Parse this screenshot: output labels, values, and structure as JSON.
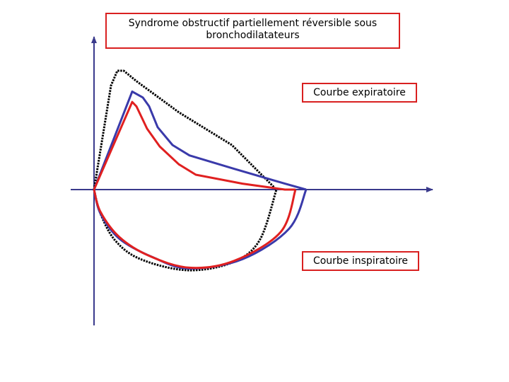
{
  "chart_data": {
    "type": "line",
    "title": "Syndrome obstructif partiellement réversible sous bronchodilatateurs",
    "annotations": [
      {
        "text": "Courbe expiratoire"
      },
      {
        "text": "Courbe inspiratoire"
      }
    ],
    "xlim": [
      0,
      100
    ],
    "ylim": [
      -100,
      100
    ],
    "grid": false,
    "series": [
      {
        "color": "#000000",
        "style": "dotted",
        "expiratory": {
          "x": [
            0,
            8,
            11,
            14,
            20,
            40,
            65,
            86
          ],
          "y": [
            0,
            70,
            80,
            80,
            73,
            52,
            30,
            0
          ]
        },
        "inspiratory": {
          "x": [
            0,
            3,
            10,
            22,
            44,
            65,
            78,
            86
          ],
          "y": [
            0,
            -28,
            -60,
            -82,
            -95,
            -86,
            -60,
            0
          ]
        }
      },
      {
        "color": "#3a3aaa",
        "style": "solid",
        "expiratory": {
          "x": [
            0,
            18,
            23,
            26,
            30,
            37,
            45,
            66,
            90,
            100
          ],
          "y": [
            0,
            66,
            62,
            56,
            42,
            30,
            23,
            14,
            4,
            0
          ]
        },
        "inspiratory": {
          "x": [
            0,
            3,
            12,
            28,
            45,
            70,
            92,
            100
          ],
          "y": [
            0,
            -28,
            -58,
            -80,
            -93,
            -82,
            -46,
            0
          ]
        }
      },
      {
        "color": "#e02020",
        "style": "solid",
        "expiratory": {
          "x": [
            0,
            18,
            20,
            25,
            31,
            40,
            48,
            70,
            90,
            95
          ],
          "y": [
            0,
            59,
            56,
            41,
            29,
            17,
            10,
            4,
            0,
            0
          ]
        },
        "inspiratory": {
          "x": [
            0,
            3,
            12,
            26,
            45,
            66,
            88,
            95
          ],
          "y": [
            0,
            -26,
            -56,
            -78,
            -92,
            -84,
            -50,
            0
          ]
        }
      }
    ]
  }
}
